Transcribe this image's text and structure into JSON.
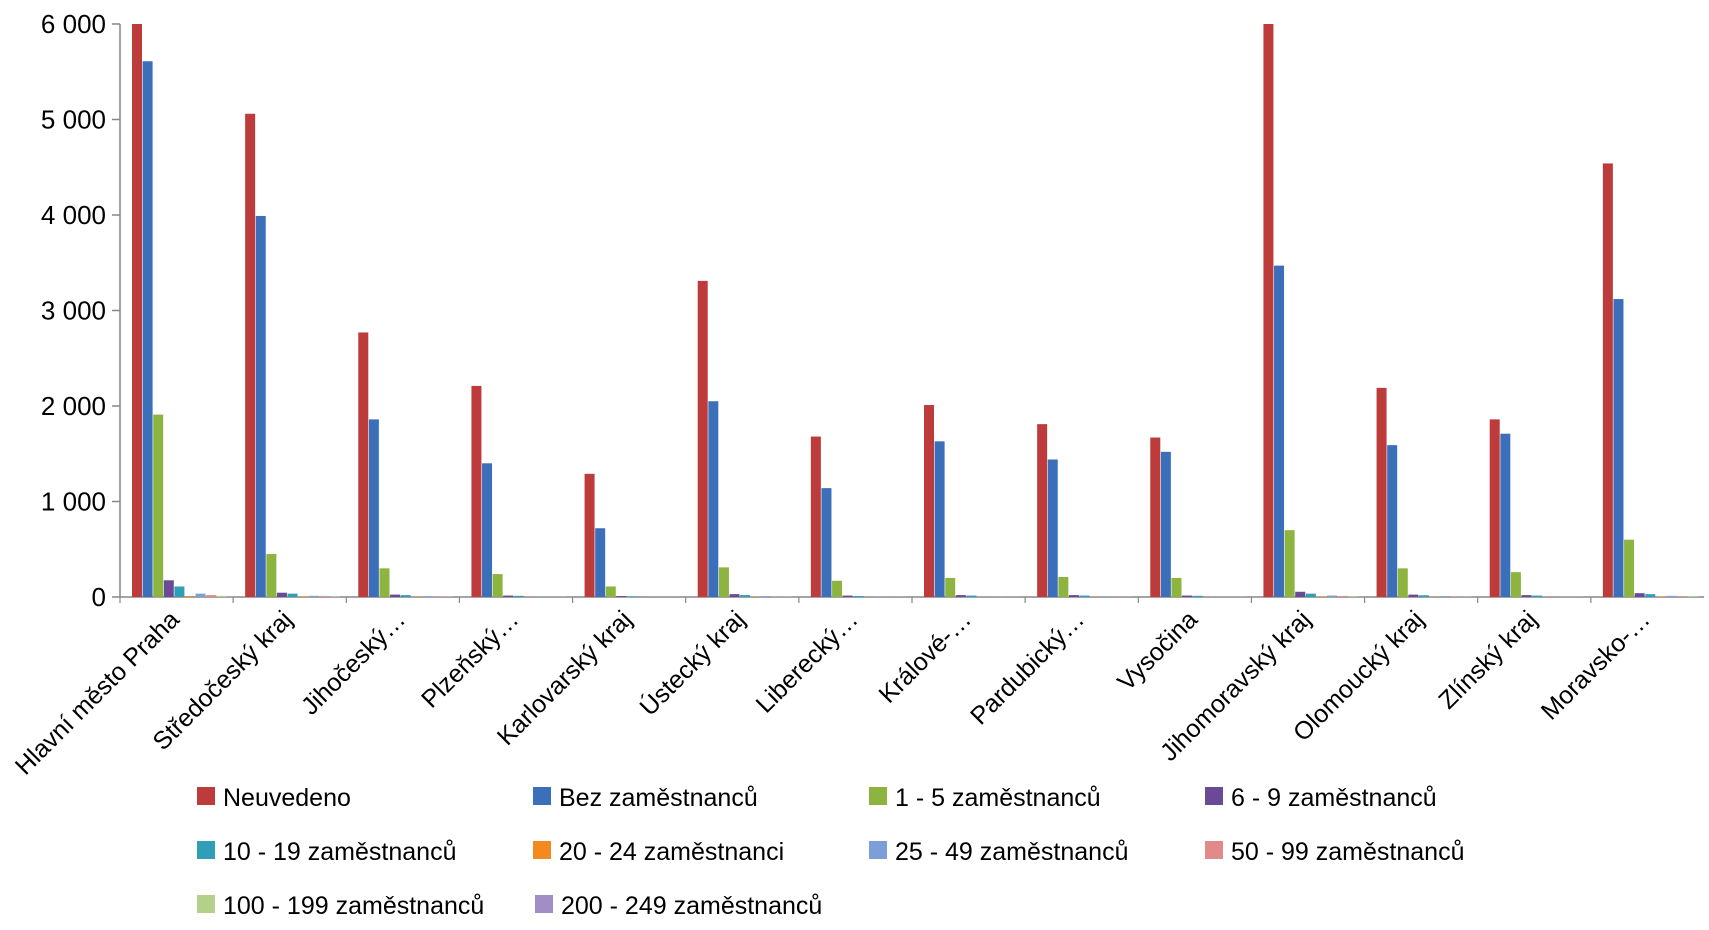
{
  "chart_data": {
    "type": "bar",
    "title": "",
    "xlabel": "",
    "ylabel": "",
    "ylim": [
      0,
      6000
    ],
    "yticks": [
      0,
      1000,
      2000,
      3000,
      4000,
      5000,
      6000
    ],
    "ytick_labels": [
      "0",
      "1 000",
      "2 000",
      "3 000",
      "4 000",
      "5 000",
      "6 000"
    ],
    "grid": false,
    "legend_position": "bottom",
    "categories": [
      "Hlavní město Praha",
      "Středočeský kraj",
      "Jihočeský…",
      "Plzeňský…",
      "Karlovarský kraj",
      "Ústecký kraj",
      "Liberecký…",
      "Králové-…",
      "Pardubický…",
      "Vysočina",
      "Jihomoravský kraj",
      "Olomoucký kraj",
      "Zlínský kraj",
      "Moravsko-…"
    ],
    "series": [
      {
        "name": "Neuvedeno",
        "color": "#be3b3b",
        "values": [
          6000,
          5060,
          2770,
          2210,
          1290,
          3310,
          1680,
          2010,
          1810,
          1670,
          6000,
          2190,
          1860,
          4540
        ]
      },
      {
        "name": "Bez zaměstnanců",
        "color": "#3c6fba",
        "values": [
          5610,
          3990,
          1860,
          1400,
          720,
          2050,
          1140,
          1630,
          1440,
          1520,
          3470,
          1590,
          1710,
          3120
        ]
      },
      {
        "name": "1 - 5 zaměstnanců",
        "color": "#8cb43f",
        "values": [
          1910,
          450,
          300,
          240,
          110,
          310,
          170,
          200,
          210,
          200,
          700,
          300,
          260,
          600
        ]
      },
      {
        "name": "6 - 9 zaměstnanců",
        "color": "#6a4a96",
        "values": [
          175,
          45,
          25,
          15,
          10,
          30,
          15,
          20,
          20,
          15,
          55,
          25,
          20,
          40
        ]
      },
      {
        "name": "10 - 19 zaměstnanců",
        "color": "#2f9fb8",
        "values": [
          110,
          35,
          20,
          12,
          6,
          20,
          10,
          15,
          15,
          12,
          35,
          18,
          15,
          30
        ]
      },
      {
        "name": "20 - 24 zaměstnanci",
        "color": "#f38a1f",
        "values": [
          10,
          4,
          3,
          2,
          1,
          3,
          2,
          2,
          2,
          2,
          5,
          2,
          2,
          4
        ]
      },
      {
        "name": "25 - 49 zaměstnanců",
        "color": "#7d9fd8",
        "values": [
          35,
          12,
          8,
          6,
          3,
          8,
          5,
          6,
          6,
          5,
          15,
          8,
          6,
          12
        ]
      },
      {
        "name": "50 - 99 zaměstnanců",
        "color": "#e28a8a",
        "values": [
          20,
          8,
          5,
          4,
          2,
          5,
          3,
          4,
          4,
          3,
          10,
          5,
          4,
          8
        ]
      },
      {
        "name": "100 - 199 zaměstnanců",
        "color": "#b3d18a",
        "values": [
          12,
          5,
          3,
          2,
          1,
          3,
          2,
          2,
          2,
          2,
          6,
          3,
          2,
          5
        ]
      },
      {
        "name": "200 - 249 zaměstnanců",
        "color": "#a08ec6",
        "values": [
          3,
          1,
          1,
          1,
          0,
          1,
          1,
          1,
          1,
          1,
          2,
          1,
          1,
          1
        ]
      }
    ]
  }
}
